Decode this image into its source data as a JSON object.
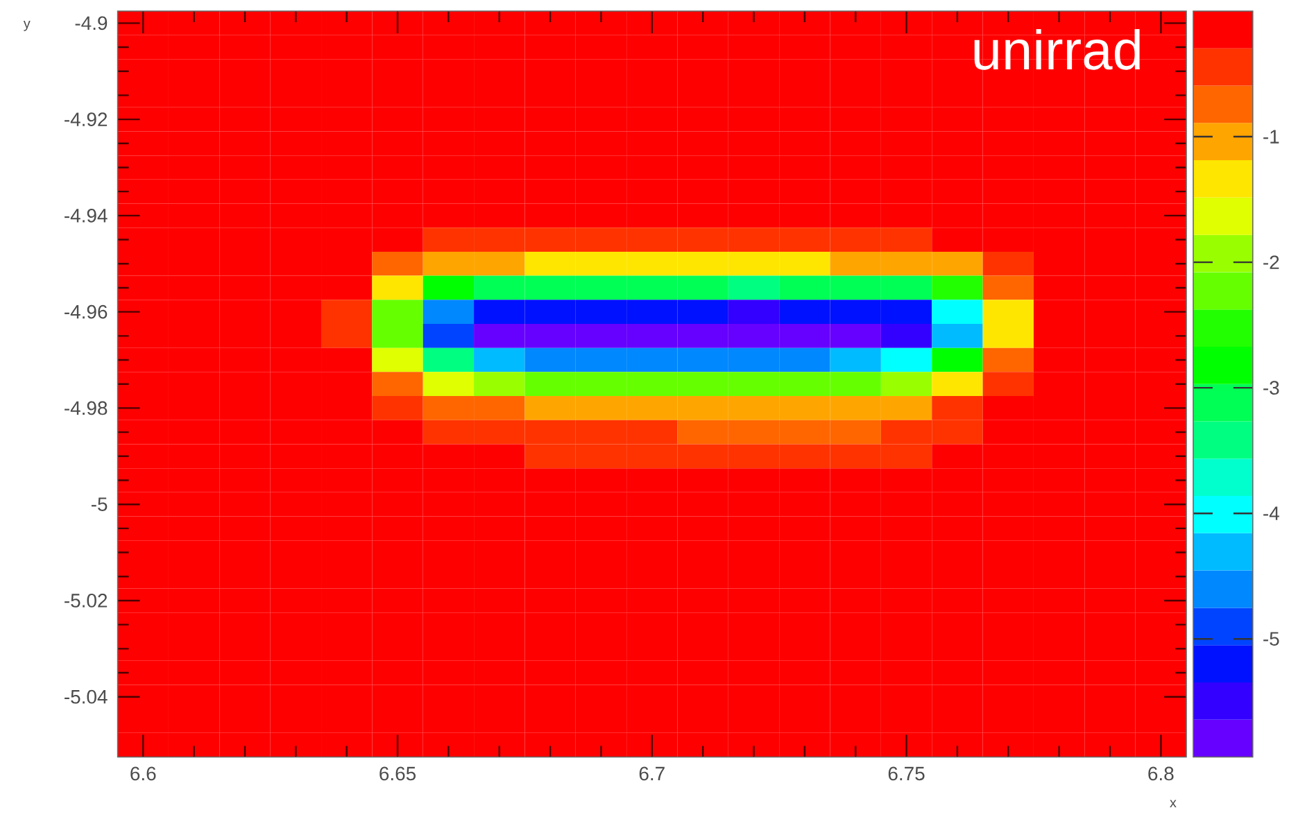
{
  "chart_data": {
    "type": "heatmap",
    "title": "unirrad",
    "xlabel": "x",
    "ylabel": "y",
    "x": [
      6.6,
      6.61,
      6.62,
      6.63,
      6.64,
      6.65,
      6.66,
      6.67,
      6.68,
      6.69,
      6.7,
      6.71,
      6.72,
      6.73,
      6.74,
      6.75,
      6.76,
      6.77,
      6.78,
      6.79,
      6.8
    ],
    "y": [
      -4.9,
      -4.905,
      -4.91,
      -4.915,
      -4.92,
      -4.925,
      -4.93,
      -4.935,
      -4.94,
      -4.945,
      -4.95,
      -4.955,
      -4.96,
      -4.965,
      -4.97,
      -4.975,
      -4.98,
      -4.985,
      -4.99,
      -4.995,
      -5,
      -5.005,
      -5.01,
      -5.015,
      -5.02,
      -5.025,
      -5.03,
      -5.035,
      -5.04,
      -5.045,
      -5.05
    ],
    "xlim": [
      6.595,
      6.805
    ],
    "ylim": [
      -5.0525,
      -4.8975
    ],
    "xticks": [
      6.6,
      6.65,
      6.7,
      6.75,
      6.8
    ],
    "yticks": [
      -4.9,
      -4.92,
      -4.94,
      -4.96,
      -4.98,
      -5,
      -5.02,
      -5.04
    ],
    "clim": [
      -5.94,
      0
    ],
    "cticks": [
      -1,
      -2,
      -3,
      -4,
      -5
    ],
    "cells": [
      [
        -0.15,
        -0.15,
        -0.15,
        -0.15,
        -0.15,
        -0.15,
        -0.15,
        -0.15,
        -0.15,
        -0.15,
        -0.15,
        -0.15,
        -0.15,
        -0.15,
        -0.15,
        -0.15,
        -0.15,
        -0.15,
        -0.15,
        -0.15,
        -0.15
      ],
      [
        -0.15,
        -0.15,
        -0.15,
        -0.15,
        -0.15,
        -0.15,
        -0.15,
        -0.15,
        -0.15,
        -0.15,
        -0.15,
        -0.15,
        -0.15,
        -0.15,
        -0.15,
        -0.15,
        -0.15,
        -0.15,
        -0.15,
        -0.15,
        -0.15
      ],
      [
        -0.15,
        -0.15,
        -0.15,
        -0.15,
        -0.15,
        -0.15,
        -0.15,
        -0.15,
        -0.15,
        -0.15,
        -0.15,
        -0.15,
        -0.15,
        -0.15,
        -0.15,
        -0.15,
        -0.15,
        -0.15,
        -0.15,
        -0.15,
        -0.15
      ],
      [
        -0.15,
        -0.15,
        -0.15,
        -0.15,
        -0.15,
        -0.15,
        -0.15,
        -0.15,
        -0.15,
        -0.15,
        -0.15,
        -0.15,
        -0.15,
        -0.15,
        -0.15,
        -0.15,
        -0.15,
        -0.15,
        -0.15,
        -0.15,
        -0.15
      ],
      [
        -0.15,
        -0.15,
        -0.15,
        -0.15,
        -0.15,
        -0.15,
        -0.15,
        -0.15,
        -0.15,
        -0.15,
        -0.15,
        -0.15,
        -0.15,
        -0.15,
        -0.15,
        -0.15,
        -0.15,
        -0.15,
        -0.15,
        -0.15,
        -0.15
      ],
      [
        -0.15,
        -0.15,
        -0.15,
        -0.15,
        -0.15,
        -0.15,
        -0.15,
        -0.15,
        -0.15,
        -0.15,
        -0.15,
        -0.15,
        -0.15,
        -0.15,
        -0.15,
        -0.15,
        -0.15,
        -0.15,
        -0.15,
        -0.15,
        -0.15
      ],
      [
        -0.15,
        -0.15,
        -0.15,
        -0.15,
        -0.15,
        -0.15,
        -0.15,
        -0.15,
        -0.15,
        -0.15,
        -0.15,
        -0.15,
        -0.15,
        -0.15,
        -0.15,
        -0.15,
        -0.15,
        -0.15,
        -0.15,
        -0.15,
        -0.15
      ],
      [
        -0.15,
        -0.15,
        -0.15,
        -0.15,
        -0.15,
        -0.15,
        -0.15,
        -0.15,
        -0.15,
        -0.15,
        -0.15,
        -0.15,
        -0.15,
        -0.15,
        -0.15,
        -0.15,
        -0.15,
        -0.15,
        -0.15,
        -0.15,
        -0.15
      ],
      [
        -0.15,
        -0.15,
        -0.15,
        -0.15,
        -0.15,
        -0.15,
        -0.15,
        -0.15,
        -0.15,
        -0.15,
        -0.15,
        -0.15,
        -0.15,
        -0.15,
        -0.15,
        -0.15,
        -0.15,
        -0.15,
        -0.15,
        -0.15,
        -0.15
      ],
      [
        -0.15,
        -0.15,
        -0.15,
        -0.15,
        -0.15,
        -0.15,
        -0.45,
        -0.45,
        -0.45,
        -0.45,
        -0.45,
        -0.45,
        -0.45,
        -0.45,
        -0.45,
        -0.45,
        -0.15,
        -0.15,
        -0.15,
        -0.15,
        -0.15
      ],
      [
        -0.15,
        -0.15,
        -0.15,
        -0.15,
        -0.15,
        -0.74,
        -1.04,
        -1.04,
        -1.34,
        -1.34,
        -1.34,
        -1.34,
        -1.34,
        -1.34,
        -1.04,
        -1.04,
        -1.04,
        -0.45,
        -0.15,
        -0.15,
        -0.15
      ],
      [
        -0.15,
        -0.15,
        -0.15,
        -0.15,
        -0.15,
        -1.34,
        -2.82,
        -3.12,
        -3.12,
        -3.12,
        -3.12,
        -3.12,
        -3.42,
        -3.12,
        -3.12,
        -3.12,
        -2.52,
        -0.74,
        -0.15,
        -0.15,
        -0.15
      ],
      [
        -0.15,
        -0.15,
        -0.15,
        -0.15,
        -0.45,
        -2.23,
        -4.6,
        -5.2,
        -5.2,
        -5.2,
        -5.2,
        -5.2,
        -5.49,
        -5.2,
        -5.2,
        -5.2,
        -4.01,
        -1.34,
        -0.15,
        -0.15,
        -0.15
      ],
      [
        -0.15,
        -0.15,
        -0.15,
        -0.15,
        -0.45,
        -2.23,
        -4.9,
        -5.79,
        -5.79,
        -5.79,
        -5.79,
        -5.79,
        -5.79,
        -5.79,
        -5.79,
        -5.49,
        -4.31,
        -1.34,
        -0.15,
        -0.15,
        -0.15
      ],
      [
        -0.15,
        -0.15,
        -0.15,
        -0.15,
        -0.15,
        -1.63,
        -3.42,
        -4.31,
        -4.6,
        -4.6,
        -4.6,
        -4.6,
        -4.6,
        -4.6,
        -4.31,
        -4.01,
        -2.82,
        -0.74,
        -0.15,
        -0.15,
        -0.15
      ],
      [
        -0.15,
        -0.15,
        -0.15,
        -0.15,
        -0.15,
        -0.74,
        -1.63,
        -1.93,
        -2.23,
        -2.23,
        -2.23,
        -2.23,
        -2.23,
        -2.23,
        -2.23,
        -1.93,
        -1.34,
        -0.45,
        -0.15,
        -0.15,
        -0.15
      ],
      [
        -0.15,
        -0.15,
        -0.15,
        -0.15,
        -0.15,
        -0.45,
        -0.74,
        -0.74,
        -1.04,
        -1.04,
        -1.04,
        -1.04,
        -1.04,
        -1.04,
        -1.04,
        -1.04,
        -0.45,
        -0.15,
        -0.15,
        -0.15,
        -0.15
      ],
      [
        -0.15,
        -0.15,
        -0.15,
        -0.15,
        -0.15,
        -0.15,
        -0.45,
        -0.45,
        -0.45,
        -0.45,
        -0.45,
        -0.74,
        -0.74,
        -0.74,
        -0.74,
        -0.45,
        -0.45,
        -0.15,
        -0.15,
        -0.15,
        -0.15
      ],
      [
        -0.15,
        -0.15,
        -0.15,
        -0.15,
        -0.15,
        -0.15,
        -0.15,
        -0.15,
        -0.45,
        -0.45,
        -0.45,
        -0.45,
        -0.45,
        -0.45,
        -0.45,
        -0.45,
        -0.15,
        -0.15,
        -0.15,
        -0.15,
        -0.15
      ],
      [
        -0.15,
        -0.15,
        -0.15,
        -0.15,
        -0.15,
        -0.15,
        -0.15,
        -0.15,
        -0.15,
        -0.15,
        -0.15,
        -0.15,
        -0.15,
        -0.15,
        -0.15,
        -0.15,
        -0.15,
        -0.15,
        -0.15,
        -0.15,
        -0.15
      ],
      [
        -0.15,
        -0.15,
        -0.15,
        -0.15,
        -0.15,
        -0.15,
        -0.15,
        -0.15,
        -0.15,
        -0.15,
        -0.15,
        -0.15,
        -0.15,
        -0.15,
        -0.15,
        -0.15,
        -0.15,
        -0.15,
        -0.15,
        -0.15,
        -0.15
      ],
      [
        -0.15,
        -0.15,
        -0.15,
        -0.15,
        -0.15,
        -0.15,
        -0.15,
        -0.15,
        -0.15,
        -0.15,
        -0.15,
        -0.15,
        -0.15,
        -0.15,
        -0.15,
        -0.15,
        -0.15,
        -0.15,
        -0.15,
        -0.15,
        -0.15
      ],
      [
        -0.15,
        -0.15,
        -0.15,
        -0.15,
        -0.15,
        -0.15,
        -0.15,
        -0.15,
        -0.15,
        -0.15,
        -0.15,
        -0.15,
        -0.15,
        -0.15,
        -0.15,
        -0.15,
        -0.15,
        -0.15,
        -0.15,
        -0.15,
        -0.15
      ],
      [
        -0.15,
        -0.15,
        -0.15,
        -0.15,
        -0.15,
        -0.15,
        -0.15,
        -0.15,
        -0.15,
        -0.15,
        -0.15,
        -0.15,
        -0.15,
        -0.15,
        -0.15,
        -0.15,
        -0.15,
        -0.15,
        -0.15,
        -0.15,
        -0.15
      ],
      [
        -0.15,
        -0.15,
        -0.15,
        -0.15,
        -0.15,
        -0.15,
        -0.15,
        -0.15,
        -0.15,
        -0.15,
        -0.15,
        -0.15,
        -0.15,
        -0.15,
        -0.15,
        -0.15,
        -0.15,
        -0.15,
        -0.15,
        -0.15,
        -0.15
      ],
      [
        -0.15,
        -0.15,
        -0.15,
        -0.15,
        -0.15,
        -0.15,
        -0.15,
        -0.15,
        -0.15,
        -0.15,
        -0.15,
        -0.15,
        -0.15,
        -0.15,
        -0.15,
        -0.15,
        -0.15,
        -0.15,
        -0.15,
        -0.15,
        -0.15
      ],
      [
        -0.15,
        -0.15,
        -0.15,
        -0.15,
        -0.15,
        -0.15,
        -0.15,
        -0.15,
        -0.15,
        -0.15,
        -0.15,
        -0.15,
        -0.15,
        -0.15,
        -0.15,
        -0.15,
        -0.15,
        -0.15,
        -0.15,
        -0.15,
        -0.15
      ],
      [
        -0.15,
        -0.15,
        -0.15,
        -0.15,
        -0.15,
        -0.15,
        -0.15,
        -0.15,
        -0.15,
        -0.15,
        -0.15,
        -0.15,
        -0.15,
        -0.15,
        -0.15,
        -0.15,
        -0.15,
        -0.15,
        -0.15,
        -0.15,
        -0.15
      ],
      [
        -0.15,
        -0.15,
        -0.15,
        -0.15,
        -0.15,
        -0.15,
        -0.15,
        -0.15,
        -0.15,
        -0.15,
        -0.15,
        -0.15,
        -0.15,
        -0.15,
        -0.15,
        -0.15,
        -0.15,
        -0.15,
        -0.15,
        -0.15,
        -0.15
      ],
      [
        -0.15,
        -0.15,
        -0.15,
        -0.15,
        -0.15,
        -0.15,
        -0.15,
        -0.15,
        -0.15,
        -0.15,
        -0.15,
        -0.15,
        -0.15,
        -0.15,
        -0.15,
        -0.15,
        -0.15,
        -0.15,
        -0.15,
        -0.15,
        -0.15
      ],
      [
        -0.15,
        -0.15,
        -0.15,
        -0.15,
        -0.15,
        -0.15,
        -0.15,
        -0.15,
        -0.15,
        -0.15,
        -0.15,
        -0.15,
        -0.15,
        -0.15,
        -0.15,
        -0.15,
        -0.15,
        -0.15,
        -0.15,
        -0.15,
        -0.15
      ]
    ]
  }
}
